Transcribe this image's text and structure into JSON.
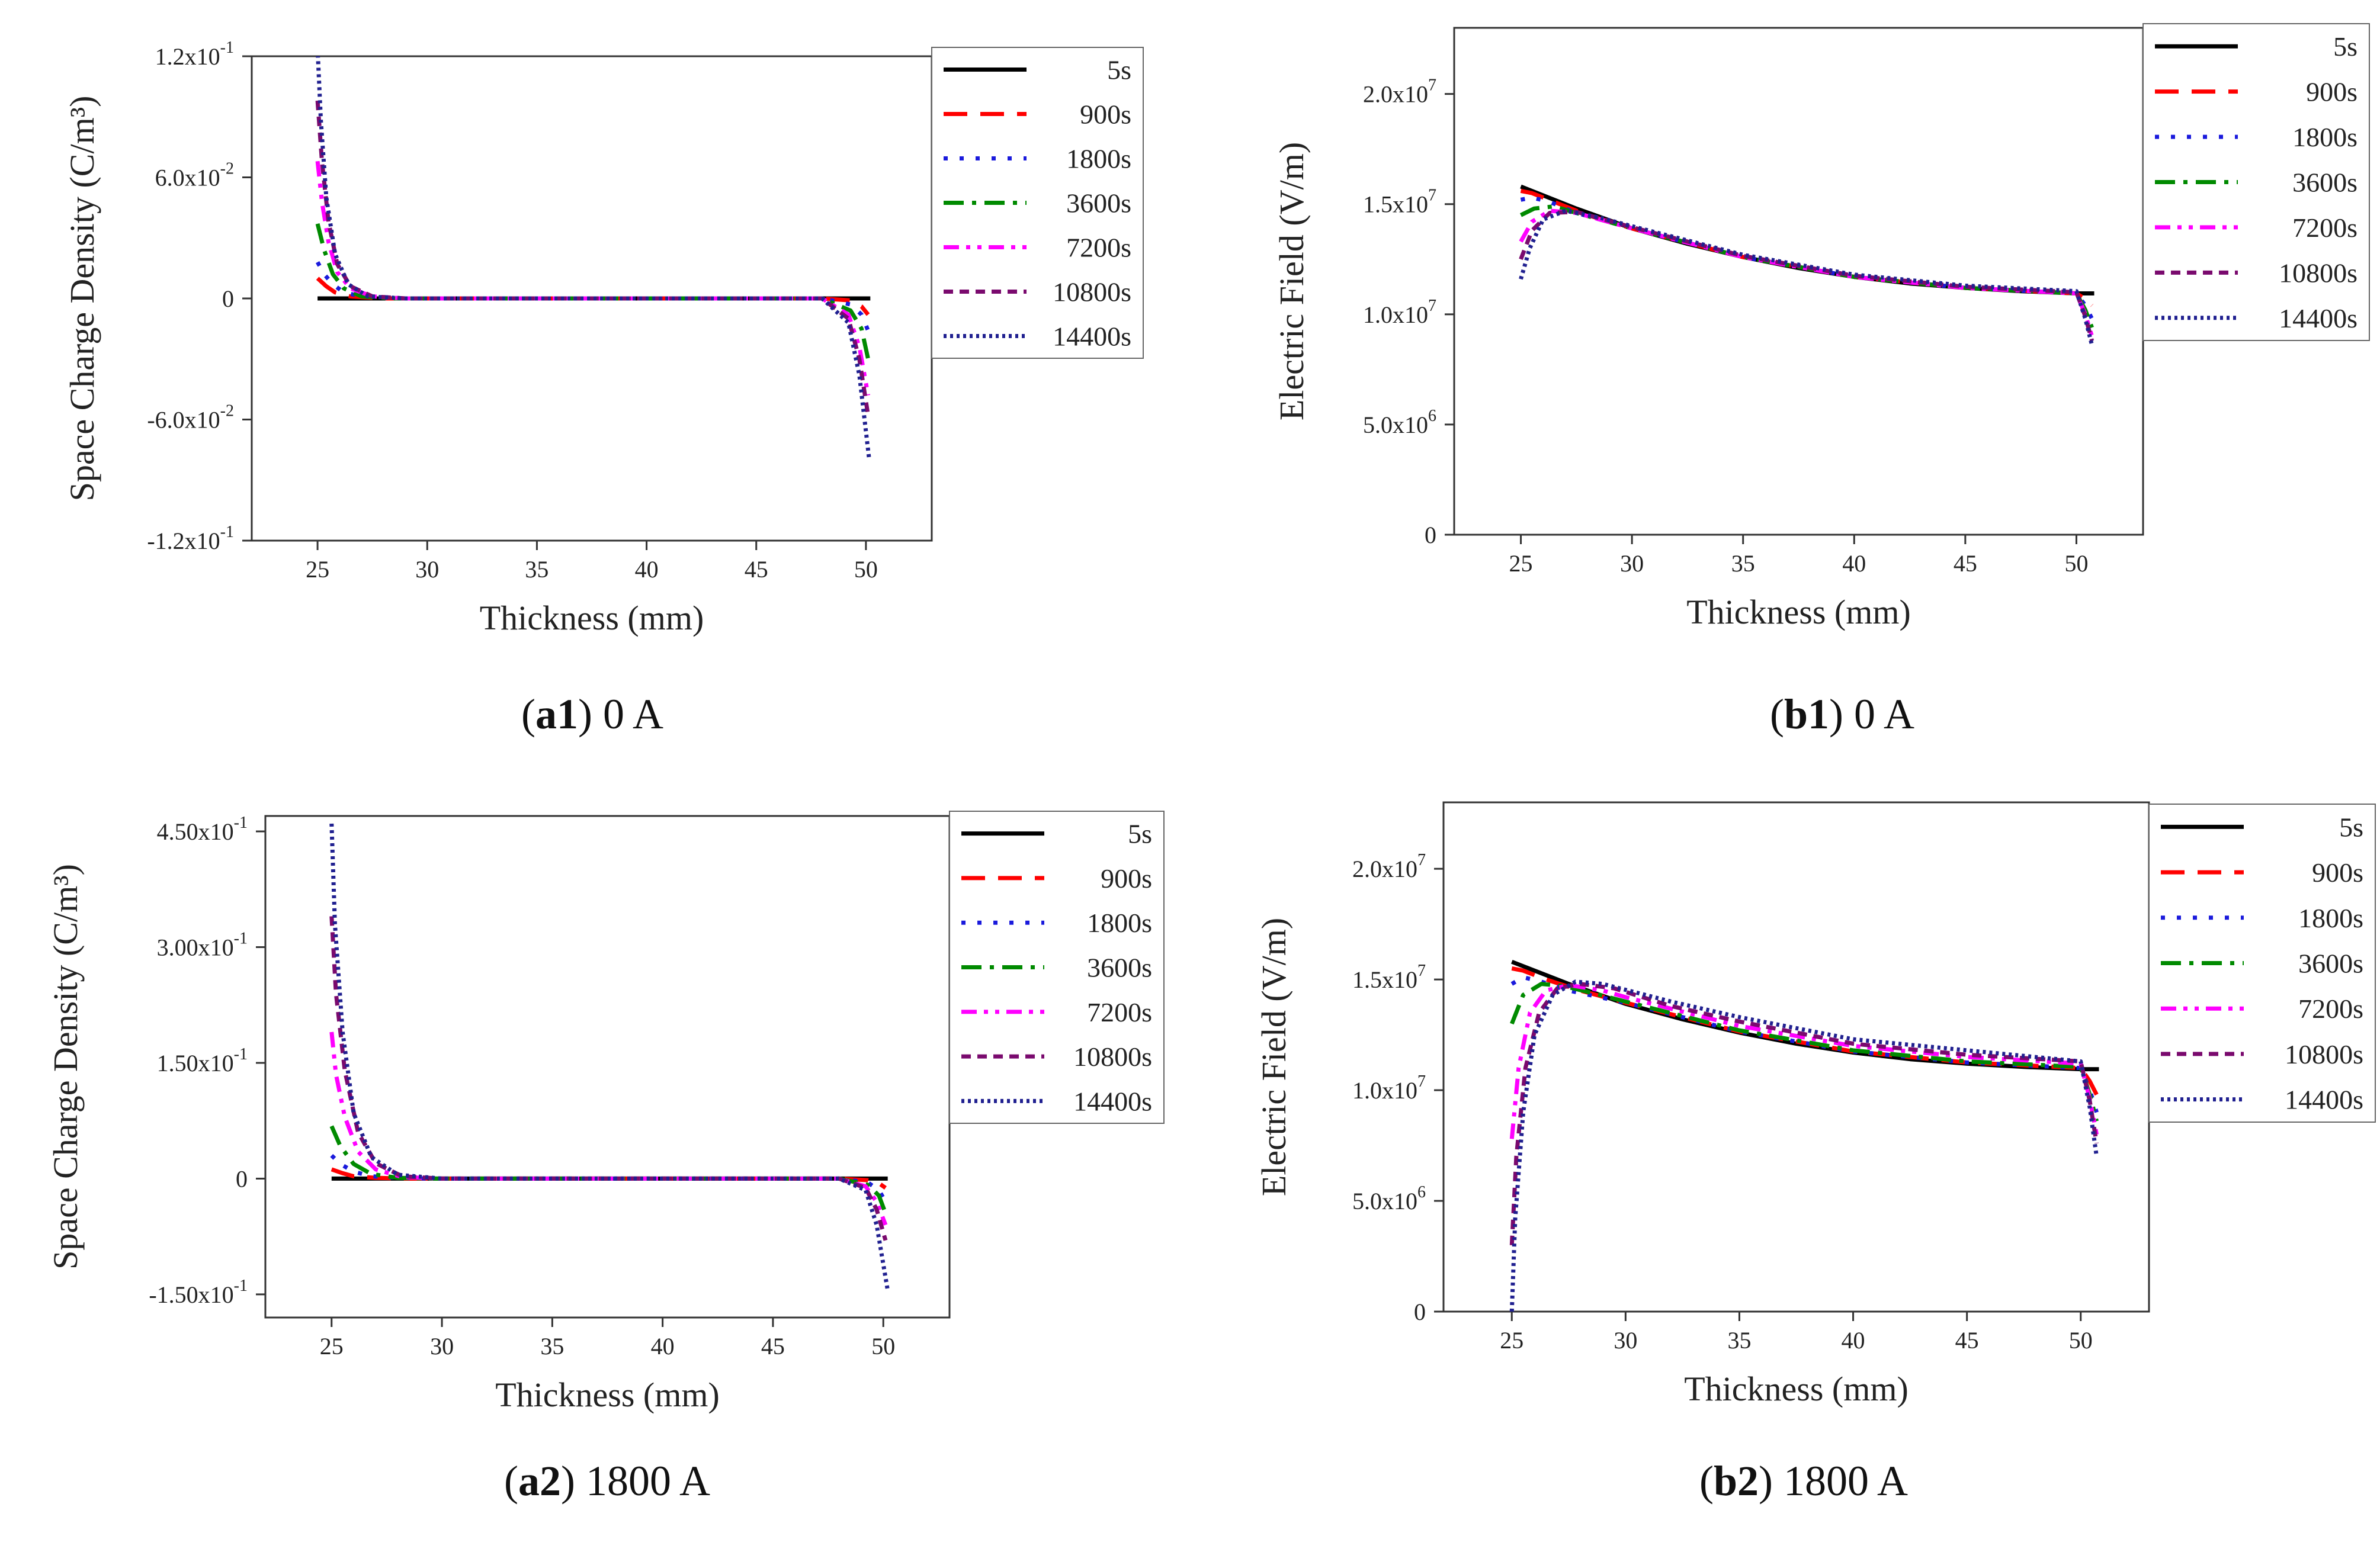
{
  "series_styles": [
    {
      "name": "5s",
      "color": "#000000",
      "dash": "none"
    },
    {
      "name": "900s",
      "color": "#ff0000",
      "dash": "40,22"
    },
    {
      "name": "1800s",
      "color": "#1a1adc",
      "dash": "7,20"
    },
    {
      "name": "3600s",
      "color": "#008a00",
      "dash": "34,14,7,14"
    },
    {
      "name": "7200s",
      "color": "#ff00ff",
      "dash": "26,12,7,12,7,12"
    },
    {
      "name": "10800s",
      "color": "#7a0a6e",
      "dash": "16,11"
    },
    {
      "name": "14400s",
      "color": "#202090",
      "dash": "5,6"
    }
  ],
  "chart_data": [
    {
      "id": "a1",
      "caption_id": "a1",
      "caption_rest": ") 0 A",
      "type": "line",
      "title": "",
      "xlabel": "Thickness (mm)",
      "ylabel": "Space Charge Density (C/m³)",
      "xlim": [
        22,
        53
      ],
      "ylim": [
        -0.12,
        0.12
      ],
      "x_ticks": [
        25,
        30,
        35,
        40,
        45,
        50
      ],
      "y_ticks": [
        {
          "value": -0.12,
          "base": "-1.2x10",
          "exp": "-1"
        },
        {
          "value": -0.06,
          "base": "-6.0x10",
          "exp": "-2"
        },
        {
          "value": 0,
          "base": "0",
          "exp": ""
        },
        {
          "value": 0.06,
          "base": "6.0x10",
          "exp": "-2"
        },
        {
          "value": 0.12,
          "base": "1.2x10",
          "exp": "-1"
        }
      ],
      "series": [
        {
          "name": "5s",
          "x": [
            25,
            26,
            30,
            40,
            48,
            49.5,
            50.2
          ],
          "y": [
            0,
            0,
            0,
            0,
            0,
            0,
            0
          ]
        },
        {
          "name": "900s",
          "x": [
            25,
            25.4,
            25.8,
            26.5,
            28,
            48,
            49.3,
            49.8,
            50.1
          ],
          "y": [
            0.01,
            0.006,
            0.003,
            0.001,
            0,
            0,
            -0.001,
            -0.004,
            -0.008
          ]
        },
        {
          "name": "1800s",
          "x": [
            25,
            25.3,
            25.7,
            26.2,
            27,
            28.5,
            48,
            49.3,
            49.8,
            50.1
          ],
          "y": [
            0.018,
            0.012,
            0.007,
            0.003,
            0.001,
            0,
            0,
            -0.003,
            -0.008,
            -0.016
          ]
        },
        {
          "name": "3600s",
          "x": [
            25,
            25.3,
            25.7,
            26.2,
            27,
            28.5,
            48,
            49.3,
            49.8,
            50.1
          ],
          "y": [
            0.037,
            0.024,
            0.012,
            0.005,
            0.001,
            0,
            0,
            -0.006,
            -0.015,
            -0.03
          ]
        },
        {
          "name": "7200s",
          "x": [
            25,
            25.2,
            25.5,
            25.9,
            26.5,
            27.5,
            29,
            48,
            49.2,
            49.7,
            50.1
          ],
          "y": [
            0.068,
            0.048,
            0.028,
            0.013,
            0.005,
            0.001,
            0,
            0,
            -0.008,
            -0.024,
            -0.048
          ]
        },
        {
          "name": "10800s",
          "x": [
            25,
            25.2,
            25.5,
            25.9,
            26.5,
            27.5,
            29,
            48,
            49.2,
            49.7,
            50.1
          ],
          "y": [
            0.098,
            0.068,
            0.038,
            0.017,
            0.006,
            0.001,
            0,
            0,
            -0.01,
            -0.03,
            -0.058
          ]
        },
        {
          "name": "14400s",
          "x": [
            25,
            25.15,
            25.4,
            25.8,
            26.4,
            27.3,
            29,
            48,
            49.2,
            49.7,
            50.15
          ],
          "y": [
            0.124,
            0.088,
            0.05,
            0.022,
            0.007,
            0.001,
            0,
            0,
            -0.012,
            -0.038,
            -0.08
          ]
        }
      ]
    },
    {
      "id": "b1",
      "caption_id": "b1",
      "caption_rest": ") 0 A",
      "type": "line",
      "title": "",
      "xlabel": "Thickness (mm)",
      "ylabel": "Electric Field (V/m)",
      "xlim": [
        22,
        53
      ],
      "ylim": [
        0,
        23000000
      ],
      "x_ticks": [
        25,
        30,
        35,
        40,
        45,
        50
      ],
      "y_ticks": [
        {
          "value": 0,
          "base": "0",
          "exp": ""
        },
        {
          "value": 5000000,
          "base": "5.0x10",
          "exp": "6"
        },
        {
          "value": 10000000,
          "base": "1.0x10",
          "exp": "7"
        },
        {
          "value": 15000000,
          "base": "1.5x10",
          "exp": "7"
        },
        {
          "value": 20000000,
          "base": "2.0x10",
          "exp": "7"
        }
      ],
      "series": [
        {
          "name": "5s",
          "x": [
            25,
            27.5,
            30,
            32.5,
            35,
            37.5,
            40,
            42.5,
            45,
            47.5,
            50,
            50.8
          ],
          "y": [
            15800000,
            14800000,
            13900000,
            13200000,
            12600000,
            12100000,
            11700000,
            11400000,
            11200000,
            11050000,
            10950000,
            10950000
          ]
        },
        {
          "name": "900s",
          "x": [
            25,
            25.5,
            26.5,
            28,
            30,
            35,
            40,
            45,
            50,
            50.4,
            50.7
          ],
          "y": [
            15600000,
            15500000,
            15100000,
            14500000,
            13900000,
            12600000,
            11700000,
            11200000,
            10950000,
            10700000,
            10400000
          ]
        },
        {
          "name": "1800s",
          "x": [
            25,
            25.5,
            26.3,
            27.5,
            30,
            35,
            40,
            45,
            50,
            50.4,
            50.7
          ],
          "y": [
            15200000,
            15300000,
            15100000,
            14600000,
            13900000,
            12600000,
            11700000,
            11200000,
            10950000,
            10400000,
            9800000
          ]
        },
        {
          "name": "3600s",
          "x": [
            25,
            25.6,
            26.5,
            27.5,
            30,
            35,
            40,
            45,
            50,
            50.4,
            50.7
          ],
          "y": [
            14500000,
            14800000,
            14900000,
            14600000,
            13900000,
            12600000,
            11700000,
            11200000,
            10950000,
            10200000,
            9400000
          ]
        },
        {
          "name": "7200s",
          "x": [
            25,
            25.5,
            26.3,
            27.5,
            30,
            35,
            40,
            45,
            50,
            50.4,
            50.7
          ],
          "y": [
            13300000,
            14200000,
            14700000,
            14600000,
            13900000,
            12600000,
            11700000,
            11200000,
            10950000,
            10000000,
            9000000
          ]
        },
        {
          "name": "10800s",
          "x": [
            25,
            25.5,
            26.3,
            27.5,
            30,
            35,
            40,
            45,
            50,
            50.4,
            50.7
          ],
          "y": [
            12500000,
            13800000,
            14600000,
            14650000,
            13950000,
            12650000,
            11750000,
            11250000,
            11000000,
            9900000,
            8800000
          ]
        },
        {
          "name": "14400s",
          "x": [
            25,
            25.4,
            26,
            27,
            28.5,
            30,
            35,
            40,
            45,
            50,
            50.4,
            50.7
          ],
          "y": [
            11600000,
            13000000,
            14300000,
            14700000,
            14400000,
            14000000,
            12700000,
            11800000,
            11300000,
            11050000,
            9800000,
            8600000
          ]
        }
      ]
    },
    {
      "id": "a2",
      "caption_id": "a2",
      "caption_rest": ") 1800 A",
      "type": "line",
      "title": "",
      "xlabel": "Thickness (mm)",
      "ylabel": "Space Charge Density (C/m³)",
      "xlim": [
        22,
        53
      ],
      "ylim": [
        -0.18,
        0.47
      ],
      "x_ticks": [
        25,
        30,
        35,
        40,
        45,
        50
      ],
      "y_ticks": [
        {
          "value": -0.15,
          "base": "-1.50x10",
          "exp": "-1"
        },
        {
          "value": 0,
          "base": "0",
          "exp": ""
        },
        {
          "value": 0.15,
          "base": "1.50x10",
          "exp": "-1"
        },
        {
          "value": 0.3,
          "base": "3.00x10",
          "exp": "-1"
        },
        {
          "value": 0.45,
          "base": "4.50x10",
          "exp": "-1"
        }
      ],
      "series": [
        {
          "name": "5s",
          "x": [
            25,
            26,
            30,
            40,
            48,
            49.5,
            50.2
          ],
          "y": [
            0,
            0,
            0,
            0,
            0,
            0,
            0
          ]
        },
        {
          "name": "900s",
          "x": [
            25,
            25.5,
            26,
            27,
            28.5,
            48,
            49.3,
            49.8,
            50.1
          ],
          "y": [
            0.012,
            0.007,
            0.003,
            0.001,
            0,
            0,
            -0.002,
            -0.006,
            -0.012
          ]
        },
        {
          "name": "1800s",
          "x": [
            25,
            25.4,
            26,
            26.8,
            28,
            29.5,
            48,
            49.3,
            49.8,
            50.1
          ],
          "y": [
            0.03,
            0.019,
            0.009,
            0.003,
            0.001,
            0,
            0,
            -0.005,
            -0.015,
            -0.03
          ]
        },
        {
          "name": "3600s",
          "x": [
            25,
            25.4,
            26,
            26.8,
            28,
            29.5,
            48,
            49.3,
            49.8,
            50.1
          ],
          "y": [
            0.068,
            0.042,
            0.019,
            0.006,
            0.001,
            0,
            0,
            -0.008,
            -0.022,
            -0.045
          ]
        },
        {
          "name": "7200s",
          "x": [
            25,
            25.2,
            25.6,
            26.2,
            27,
            28.2,
            30,
            48,
            49.2,
            49.7,
            50.1
          ],
          "y": [
            0.19,
            0.135,
            0.08,
            0.035,
            0.012,
            0.002,
            0,
            0,
            -0.01,
            -0.03,
            -0.06
          ]
        },
        {
          "name": "10800s",
          "x": [
            25,
            25.2,
            25.6,
            26.2,
            27,
            28.2,
            30,
            48,
            49.2,
            49.7,
            50.1
          ],
          "y": [
            0.34,
            0.24,
            0.14,
            0.06,
            0.02,
            0.003,
            0,
            0,
            -0.012,
            -0.04,
            -0.08
          ]
        },
        {
          "name": "14400s",
          "x": [
            25,
            25.15,
            25.5,
            26,
            26.8,
            28,
            30,
            48,
            49.2,
            49.7,
            50.2
          ],
          "y": [
            0.46,
            0.33,
            0.19,
            0.085,
            0.028,
            0.005,
            0,
            0,
            -0.015,
            -0.06,
            -0.145
          ]
        }
      ]
    },
    {
      "id": "b2",
      "caption_id": "b2",
      "caption_rest": ") 1800 A",
      "type": "line",
      "title": "",
      "xlabel": "Thickness (mm)",
      "ylabel": "Electric Field (V/m)",
      "xlim": [
        22,
        53
      ],
      "ylim": [
        0,
        23000000
      ],
      "x_ticks": [
        25,
        30,
        35,
        40,
        45,
        50
      ],
      "y_ticks": [
        {
          "value": 0,
          "base": "0",
          "exp": ""
        },
        {
          "value": 5000000,
          "base": "5.0x10",
          "exp": "6"
        },
        {
          "value": 10000000,
          "base": "1.0x10",
          "exp": "7"
        },
        {
          "value": 15000000,
          "base": "1.5x10",
          "exp": "7"
        },
        {
          "value": 20000000,
          "base": "2.0x10",
          "exp": "7"
        }
      ],
      "series": [
        {
          "name": "5s",
          "x": [
            25,
            27.5,
            30,
            32.5,
            35,
            37.5,
            40,
            42.5,
            45,
            47.5,
            50,
            50.8
          ],
          "y": [
            15800000,
            14800000,
            13900000,
            13200000,
            12600000,
            12100000,
            11700000,
            11400000,
            11200000,
            11050000,
            10950000,
            10950000
          ]
        },
        {
          "name": "900s",
          "x": [
            25,
            25.5,
            26.5,
            28,
            30,
            35,
            40,
            45,
            50,
            50.4,
            50.7
          ],
          "y": [
            15500000,
            15400000,
            15000000,
            14500000,
            13950000,
            12650000,
            11750000,
            11250000,
            11000000,
            10400000,
            9800000
          ]
        },
        {
          "name": "1800s",
          "x": [
            25,
            25.5,
            26.3,
            27.5,
            30,
            35,
            40,
            45,
            50,
            50.4,
            50.7
          ],
          "y": [
            14800000,
            15100000,
            14900000,
            14500000,
            13950000,
            12650000,
            11750000,
            11250000,
            11000000,
            10000000,
            9000000
          ]
        },
        {
          "name": "3600s",
          "x": [
            25,
            25.5,
            26.3,
            27.3,
            28.5,
            30,
            35,
            40,
            45,
            50,
            50.4,
            50.7
          ],
          "y": [
            13000000,
            14300000,
            14800000,
            14700000,
            14400000,
            14000000,
            12700000,
            11800000,
            11300000,
            11050000,
            9800000,
            8600000
          ]
        },
        {
          "name": "7200s",
          "x": [
            25,
            25.3,
            25.8,
            26.5,
            27.5,
            29,
            30,
            35,
            40,
            45,
            50,
            50.4,
            50.7
          ],
          "y": [
            7800000,
            11000000,
            13500000,
            14500000,
            14750000,
            14500000,
            14200000,
            12900000,
            12000000,
            11500000,
            11200000,
            9600000,
            8000000
          ]
        },
        {
          "name": "10800s",
          "x": [
            25,
            25.2,
            25.6,
            26.2,
            27,
            28,
            29.5,
            32,
            35,
            40,
            45,
            50,
            50.4,
            50.7
          ],
          "y": [
            3000000,
            7000000,
            11000000,
            13500000,
            14600000,
            14800000,
            14600000,
            13800000,
            13100000,
            12100000,
            11600000,
            11300000,
            9500000,
            7600000
          ]
        },
        {
          "name": "14400s",
          "x": [
            25,
            25.15,
            25.5,
            26,
            26.8,
            27.8,
            29,
            32,
            35,
            40,
            45,
            50,
            50.4,
            50.7
          ],
          "y": [
            0,
            4200000,
            9000000,
            12500000,
            14300000,
            14900000,
            14800000,
            14000000,
            13300000,
            12300000,
            11800000,
            11300000,
            9200000,
            7000000
          ]
        }
      ]
    }
  ]
}
